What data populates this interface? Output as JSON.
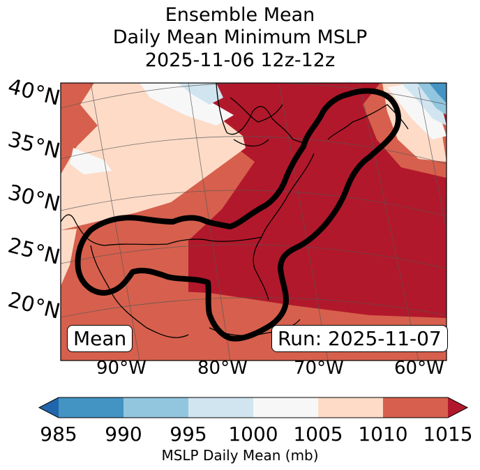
{
  "title": {
    "line1": "Ensemble Mean",
    "line2": "Daily Mean Minimum MSLP",
    "line3": "2025-11-06 12z-12z"
  },
  "map": {
    "lat_labels": [
      "40°N",
      "35°N",
      "30°N",
      "25°N",
      "20°N"
    ],
    "lon_labels": [
      "90°W",
      "80°W",
      "70°W",
      "60°W"
    ],
    "mean_box": "Mean",
    "run_box": "Run: 2025-11-07",
    "contour_color": "#000000",
    "level_colors": {
      "985-990": "#4393c3",
      "990-995": "#92c5de",
      "995-1000": "#d1e5f0",
      "1000-1005": "#f7f7f7",
      "1005-1010": "#fddbc7",
      "1010-1015": "#d6604d",
      "over-1015": "#b2182b",
      "under-985": "#2166ac"
    }
  },
  "colorbar": {
    "ticks": [
      "985",
      "990",
      "995",
      "1000",
      "1005",
      "1010",
      "1015"
    ],
    "label": "MSLP Daily Mean (mb)",
    "colors": [
      "#4393c3",
      "#92c5de",
      "#d1e5f0",
      "#f7f7f7",
      "#fddbc7",
      "#d6604d"
    ],
    "under_color": "#2166ac",
    "over_color": "#b2182b"
  }
}
